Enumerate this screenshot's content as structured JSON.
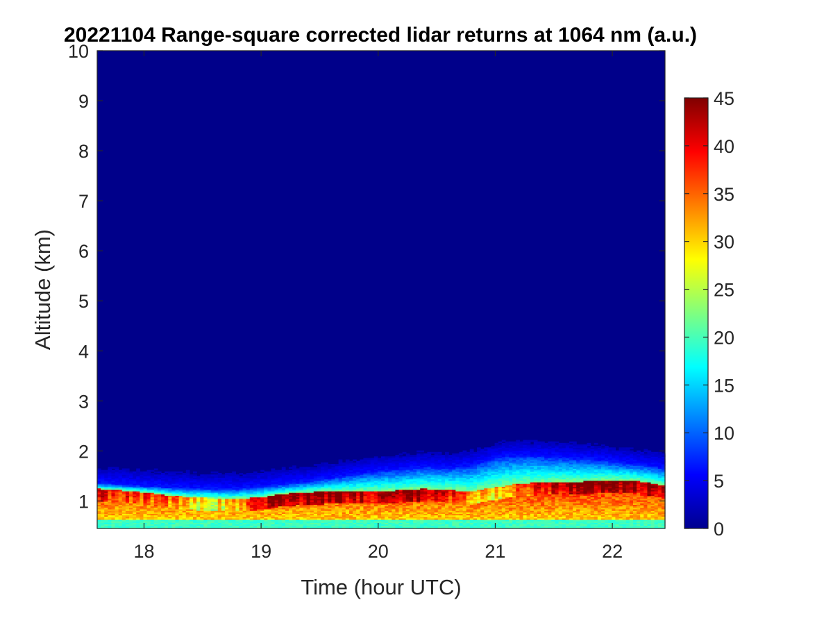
{
  "chart_data": {
    "type": "heatmap",
    "title": "20221104  Range-square corrected lidar returns at 1064 nm (a.u.)",
    "xlabel": "Time (hour UTC)",
    "ylabel": "Altitude (km)",
    "xlim": [
      17.6,
      22.45
    ],
    "ylim": [
      0.45,
      10
    ],
    "xticks": [
      18,
      19,
      20,
      21,
      22
    ],
    "yticks": [
      1,
      2,
      3,
      4,
      5,
      6,
      7,
      8,
      9,
      10
    ],
    "colorbar": {
      "colormap": "jet",
      "clim": [
        0,
        45
      ],
      "ticks": [
        0,
        5,
        10,
        15,
        20,
        25,
        30,
        35,
        40,
        45
      ]
    },
    "layer_structure": {
      "times": [
        17.6,
        17.8,
        18.0,
        18.2,
        18.4,
        18.6,
        18.8,
        19.0,
        19.2,
        19.4,
        19.6,
        19.8,
        20.0,
        20.2,
        20.4,
        20.6,
        20.8,
        21.0,
        21.2,
        21.4,
        21.6,
        21.8,
        22.0,
        22.2,
        22.45
      ],
      "aerosol_top_km": [
        1.35,
        1.33,
        1.3,
        1.27,
        1.25,
        1.24,
        1.24,
        1.28,
        1.33,
        1.38,
        1.45,
        1.52,
        1.58,
        1.62,
        1.67,
        1.65,
        1.7,
        1.85,
        1.9,
        1.88,
        1.85,
        1.82,
        1.78,
        1.72,
        1.65
      ],
      "dense_layer_top_km": [
        1.25,
        1.22,
        1.18,
        1.12,
        1.08,
        1.06,
        1.05,
        1.08,
        1.15,
        1.18,
        1.2,
        1.2,
        1.2,
        1.22,
        1.25,
        1.22,
        1.2,
        1.28,
        1.35,
        1.38,
        1.38,
        1.4,
        1.42,
        1.42,
        1.3
      ],
      "peak_signal": [
        42,
        40,
        38,
        36,
        32,
        30,
        33,
        44,
        46,
        46,
        46,
        45,
        42,
        45,
        46,
        40,
        36,
        32,
        36,
        40,
        44,
        46,
        46,
        46,
        45
      ]
    }
  }
}
